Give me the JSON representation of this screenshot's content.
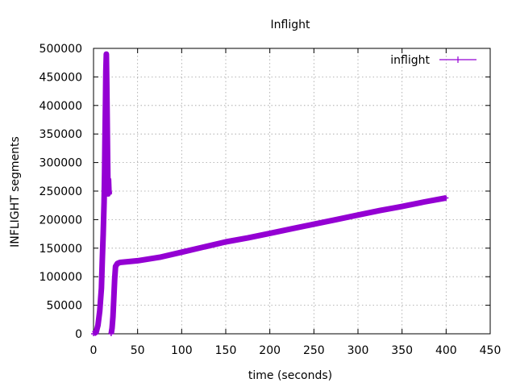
{
  "chart_data": {
    "type": "line",
    "title": "Inflight",
    "xlabel": "time (seconds)",
    "ylabel": "INFLIGHT segments",
    "xlim": [
      0,
      450
    ],
    "ylim": [
      0,
      500000
    ],
    "x_ticks": [
      0,
      50,
      100,
      150,
      200,
      250,
      300,
      350,
      400,
      450
    ],
    "x_tick_labels": [
      "0",
      "50",
      "100",
      "150",
      "200",
      "250",
      "300",
      "350",
      "400",
      "450"
    ],
    "y_ticks": [
      0,
      50000,
      100000,
      150000,
      200000,
      250000,
      300000,
      350000,
      400000,
      450000,
      500000
    ],
    "y_tick_labels": [
      "0",
      "50000",
      "100000",
      "150000",
      "200000",
      "250000",
      "300000",
      "350000",
      "400000",
      "450000",
      "500000"
    ],
    "grid": true,
    "legend_position": "top-right",
    "series": [
      {
        "name": "inflight",
        "color": "#9400d3",
        "segments": [
          [
            [
              0,
              0
            ],
            [
              3,
              3000
            ],
            [
              5,
              15000
            ],
            [
              7,
              40000
            ],
            [
              9,
              80000
            ],
            [
              10,
              130000
            ],
            [
              11,
              175000
            ],
            [
              12,
              230000
            ],
            [
              12.5,
              280000
            ],
            [
              13,
              340000
            ],
            [
              13.5,
              400000
            ],
            [
              14,
              460000
            ],
            [
              14.5,
              490000
            ],
            [
              15,
              440000
            ],
            [
              15.5,
              380000
            ],
            [
              16,
              300000
            ],
            [
              16.5,
              245000
            ],
            [
              17,
              270000
            ],
            [
              17.5,
              250000
            ],
            [
              18,
              245000
            ]
          ],
          [
            [
              20,
              0
            ],
            [
              21,
              10000
            ],
            [
              22,
              30000
            ],
            [
              23,
              60000
            ],
            [
              24,
              95000
            ],
            [
              25,
              118000
            ],
            [
              27,
              123000
            ],
            [
              30,
              125000
            ],
            [
              50,
              128000
            ],
            [
              75,
              134000
            ],
            [
              100,
              143000
            ],
            [
              125,
              152000
            ],
            [
              150,
              161000
            ],
            [
              175,
              168000
            ],
            [
              200,
              176000
            ],
            [
              225,
              184000
            ],
            [
              250,
              192000
            ],
            [
              275,
              200000
            ],
            [
              300,
              208000
            ],
            [
              325,
              216000
            ],
            [
              350,
              223000
            ],
            [
              375,
              231000
            ],
            [
              400,
              238000
            ]
          ]
        ]
      }
    ]
  }
}
